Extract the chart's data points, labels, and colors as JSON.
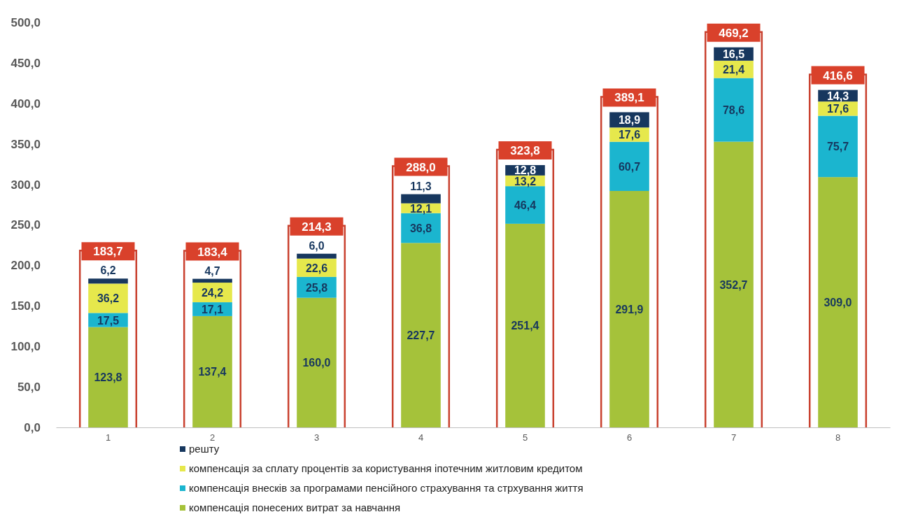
{
  "chart_data": {
    "type": "bar",
    "stacked": true,
    "categories": [
      "1",
      "2",
      "3",
      "4",
      "5",
      "6",
      "7",
      "8"
    ],
    "ylim": [
      0,
      500
    ],
    "yticks": [
      {
        "value": 0,
        "label": "0,0"
      },
      {
        "value": 50,
        "label": "50,0"
      },
      {
        "value": 100,
        "label": "100,0"
      },
      {
        "value": 150,
        "label": "150,0"
      },
      {
        "value": 200,
        "label": "200,0"
      },
      {
        "value": 250,
        "label": "250,0"
      },
      {
        "value": 300,
        "label": "300,0"
      },
      {
        "value": 350,
        "label": "350,0"
      },
      {
        "value": 400,
        "label": "400,0"
      },
      {
        "value": 450,
        "label": "450,0"
      },
      {
        "value": 500,
        "label": "500,0"
      }
    ],
    "series": [
      {
        "name": "компенсація понесених витрат за навчання",
        "color": "#a5c23a",
        "values": [
          123.8,
          137.4,
          160.0,
          227.7,
          251.4,
          291.9,
          352.7,
          309.0
        ],
        "value_labels": [
          "123,8",
          "137,4",
          "160,0",
          "227,7",
          "251,4",
          "291,9",
          "352,7",
          "309,0"
        ]
      },
      {
        "name": "компенсація внесків за програмами пенсійного страхування та стрхування життя",
        "color": "#1bb5cf",
        "values": [
          17.5,
          17.1,
          25.8,
          36.8,
          46.4,
          60.7,
          78.6,
          75.7
        ],
        "value_labels": [
          "17,5",
          "17,1",
          "25,8",
          "36,8",
          "46,4",
          "60,7",
          "78,6",
          "75,7"
        ]
      },
      {
        "name": "компенсація за сплату процентів за користування іпотечним житловим кредитом",
        "color": "#e6e84c",
        "values": [
          36.2,
          24.2,
          22.6,
          12.1,
          13.2,
          17.6,
          21.4,
          17.6
        ],
        "value_labels": [
          "36,2",
          "24,2",
          "22,6",
          "12,1",
          "13,2",
          "17,6",
          "21,4",
          "17,6"
        ]
      },
      {
        "name": "решту",
        "color": "#17375e",
        "values": [
          6.2,
          4.7,
          6.0,
          11.3,
          12.8,
          18.9,
          16.5,
          14.3
        ],
        "value_labels": [
          "6,2",
          "4,7",
          "6,0",
          "11,3",
          "12,8",
          "18,9",
          "16,5",
          "14,3"
        ]
      }
    ],
    "totals": [
      "183,7",
      "183,4",
      "214,3",
      "288,0",
      "323,8",
      "389,1",
      "469,2",
      "416,6"
    ],
    "legend": "bottom",
    "grid": false
  }
}
